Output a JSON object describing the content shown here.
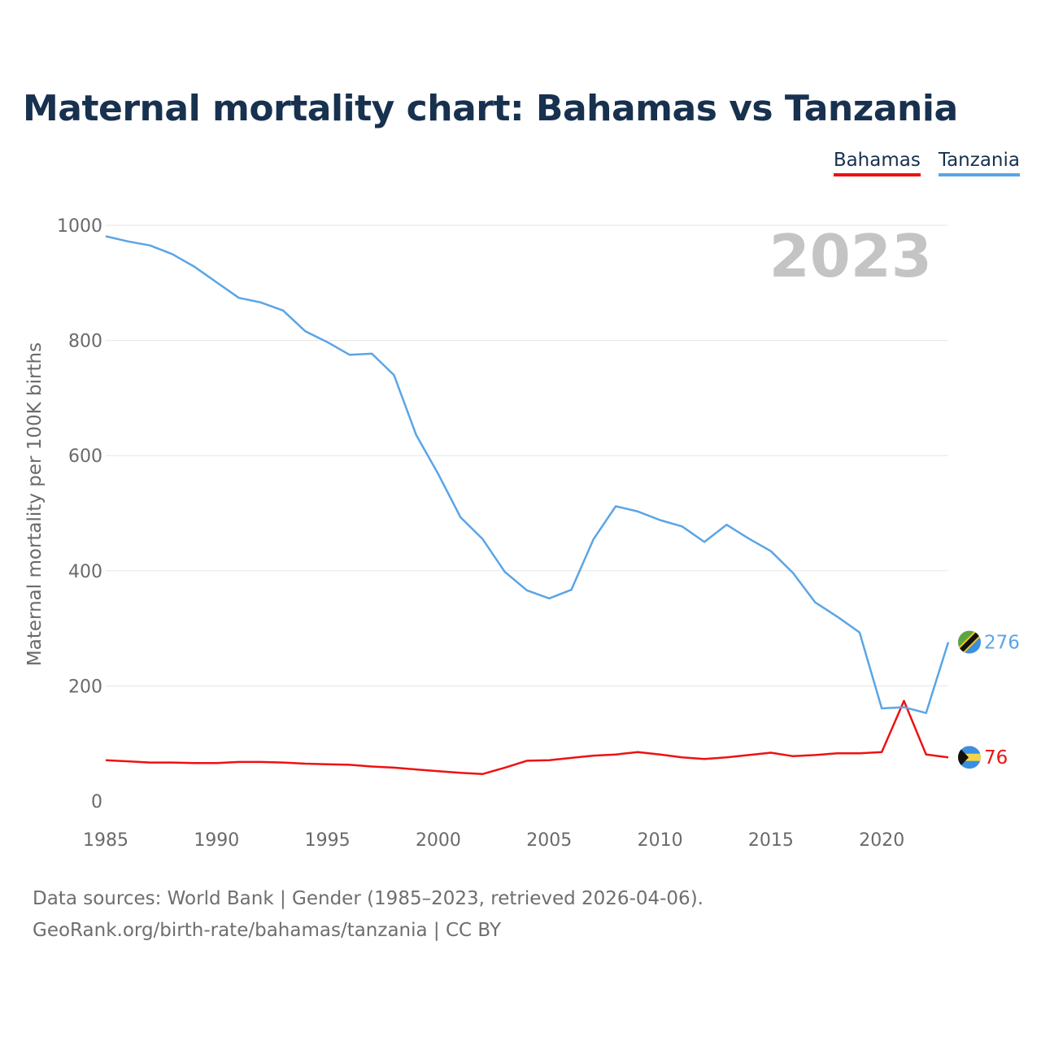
{
  "title": "Maternal mortality chart: Bahamas vs Tanzania",
  "legend": [
    {
      "name": "Bahamas",
      "color": "#ee1111"
    },
    {
      "name": "Tanzania",
      "color": "#5aa5e6"
    }
  ],
  "footer": {
    "line1": "Data sources: World Bank | Gender (1985–2023, retrieved 2026-04-06).",
    "line2": "GeoRank.org/birth-rate/bahamas/tanzania | CC BY"
  },
  "chart_data": {
    "type": "line",
    "title": "Maternal mortality chart: Bahamas vs Tanzania",
    "xlabel": "",
    "ylabel": "Maternal mortality per 100K births",
    "year_badge": "2023",
    "xlim": [
      1985,
      2023
    ],
    "ylim": [
      0,
      1000
    ],
    "x_ticks": [
      1985,
      1990,
      1995,
      2000,
      2005,
      2010,
      2015,
      2020
    ],
    "y_ticks": [
      0,
      200,
      400,
      600,
      800,
      1000
    ],
    "grid": true,
    "x": [
      1985,
      1986,
      1987,
      1988,
      1989,
      1990,
      1991,
      1992,
      1993,
      1994,
      1995,
      1996,
      1997,
      1998,
      1999,
      2000,
      2001,
      2002,
      2003,
      2004,
      2005,
      2006,
      2007,
      2008,
      2009,
      2010,
      2011,
      2012,
      2013,
      2014,
      2015,
      2016,
      2017,
      2018,
      2019,
      2020,
      2021,
      2022,
      2023
    ],
    "series": [
      {
        "name": "Bahamas",
        "color": "#ee1111",
        "end_label": "76",
        "flag": "bahamas-flag",
        "values": [
          71,
          69,
          67,
          67,
          66,
          66,
          68,
          68,
          67,
          65,
          64,
          63,
          60,
          58,
          55,
          52,
          49,
          47,
          58,
          70,
          71,
          75,
          79,
          81,
          85,
          81,
          76,
          73,
          76,
          80,
          84,
          78,
          80,
          83,
          83,
          85,
          174,
          81,
          76
        ]
      },
      {
        "name": "Tanzania",
        "color": "#5aa5e6",
        "end_label": "276",
        "flag": "tanzania-flag",
        "values": [
          981,
          972,
          965,
          950,
          928,
          901,
          874,
          866,
          852,
          816,
          797,
          775,
          777,
          740,
          636,
          568,
          493,
          455,
          398,
          366,
          352,
          367,
          455,
          512,
          503,
          488,
          477,
          450,
          480,
          456,
          434,
          396,
          345,
          320,
          293,
          161,
          163,
          153,
          276
        ]
      }
    ]
  }
}
